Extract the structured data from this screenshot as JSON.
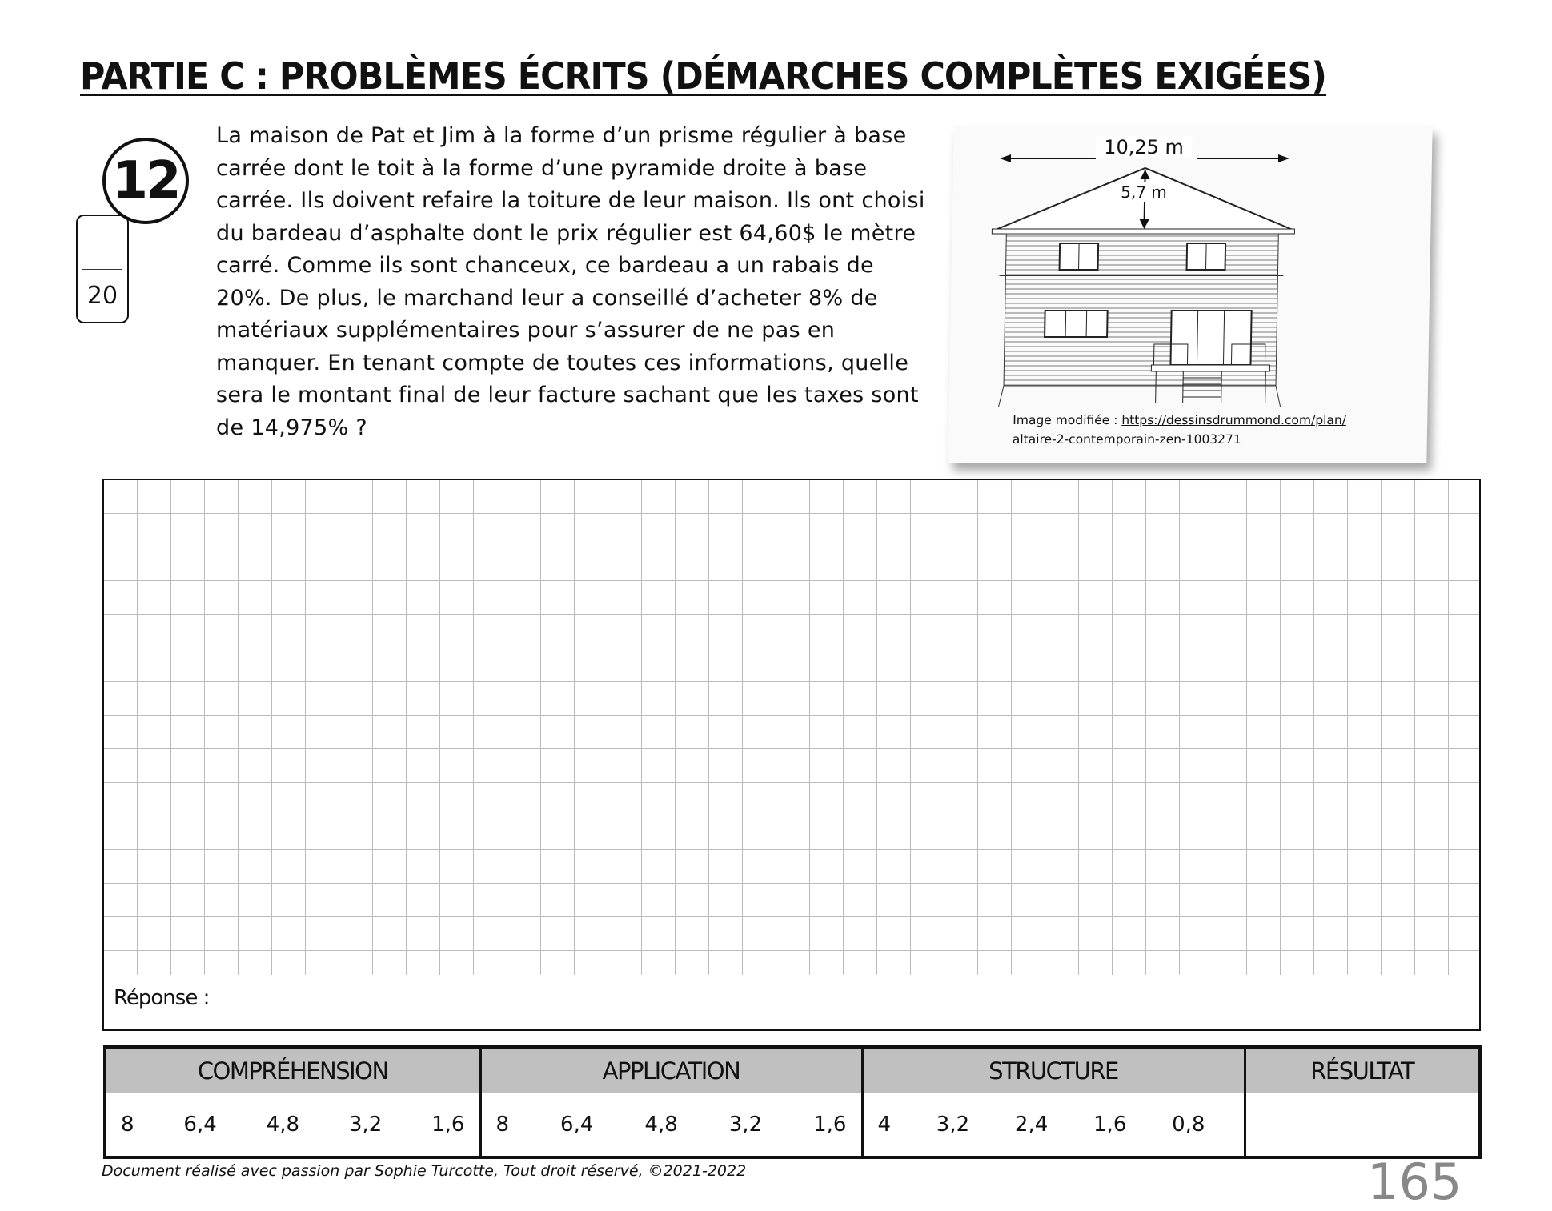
{
  "title": "PARTIE C : PROBLÈMES ÉCRITS (DÉMARCHES COMPLÈTES EXIGÉES)",
  "question": {
    "number": "12",
    "max_points": "20",
    "text": "La maison de Pat et Jim à la forme d’un prisme régulier à base carrée dont le toit à la forme d’une pyramide droite à base carrée. Ils doivent refaire la toiture de leur maison. Ils ont choisi du bardeau d’asphalte dont le prix régulier est 64,60$ le mètre carré. Comme ils sont chanceux, ce bardeau a un rabais de 20%. De plus, le marchand leur a conseillé d’acheter 8% de matériaux supplémentaires pour s’assurer de ne pas en manquer. En tenant compte de toutes ces informations, quelle sera le montant final de leur facture sachant que les taxes sont de 14,975% ?"
  },
  "figure": {
    "width_label": "10,25 m",
    "height_label": "5,7 m",
    "credit_prefix": "Image modifiée : ",
    "credit_link": "https://dessinsdrummond.com/plan/",
    "credit_line2": "altaire-2-contemporain-zen-1003271"
  },
  "answer_label": "Réponse :",
  "rubric": {
    "headers": [
      "COMPRÉHENSION",
      "APPLICATION",
      "STRUCTURE",
      "RÉSULTAT"
    ],
    "values": [
      [
        "8",
        "6,4",
        "4,8",
        "3,2",
        "1,6"
      ],
      [
        "8",
        "6,4",
        "4,8",
        "3,2",
        "1,6"
      ],
      [
        "4",
        "3,2",
        "2,4",
        "1,6",
        "0,8"
      ]
    ]
  },
  "footer": {
    "text_before": "Document réalisé avec passion par ",
    "author": "Sophie Turcotte",
    "text_after": ", Tout droit réservé, ©2021-2022"
  },
  "page_number": "165"
}
